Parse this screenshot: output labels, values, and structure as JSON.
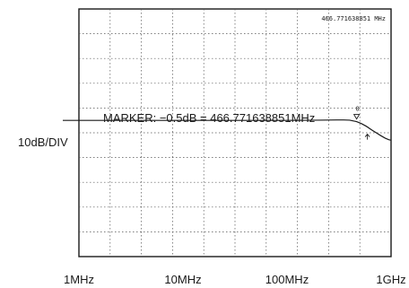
{
  "chart_data": {
    "type": "line",
    "x_scale": "log",
    "x_ticks": [
      {
        "value": 1,
        "label": "1MHz"
      },
      {
        "value": 10,
        "label": "10MHz"
      },
      {
        "value": 100,
        "label": "100MHz"
      },
      {
        "value": 1000,
        "label": "1GHz"
      }
    ],
    "xlim": [
      1,
      1000
    ],
    "ylabel": "10dB/DIV",
    "y_reference_div": 4.5,
    "grid": true,
    "marker_readout": "466.771638851 MHz",
    "marker_annotation": "MARKER: −0.5dB = 466.771638851MHz",
    "marker_symbol": "0",
    "marker_x": 466.771638851,
    "marker_y_db": -0.5,
    "series": [
      {
        "x": [
          1,
          2,
          5,
          10,
          20,
          50,
          100,
          150,
          200,
          250,
          300,
          350,
          400,
          466.77,
          520,
          580,
          650,
          720,
          800,
          880,
          950,
          1000
        ],
        "y": [
          0,
          0,
          0,
          0,
          0,
          0,
          0,
          0.05,
          0.1,
          0.15,
          0.18,
          0.18,
          0.1,
          -0.5,
          -1.3,
          -2.4,
          -3.8,
          -5.0,
          -6.2,
          -7.2,
          -7.8,
          -8.0
        ]
      }
    ]
  },
  "colors": {
    "trace": "#1a1a1a",
    "grid": "#555555",
    "frame": "#1a1a1a"
  }
}
